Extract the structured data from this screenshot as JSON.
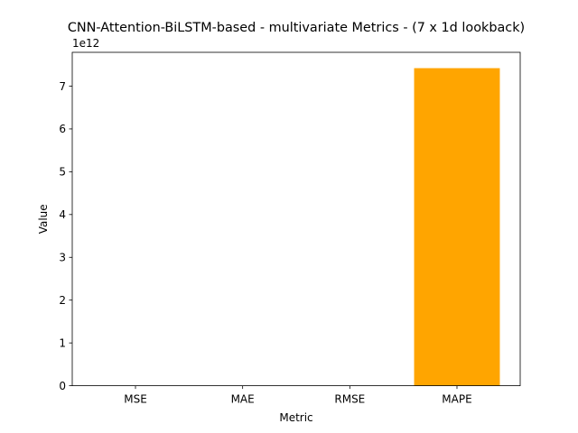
{
  "chart_data": {
    "type": "bar",
    "title": "CNN-Attention-BiLSTM-based - multivariate Metrics - (7 x 1d lookback)",
    "xlabel": "Metric",
    "ylabel": "Value",
    "y_offset_label": "1e12",
    "categories": [
      "MSE",
      "MAE",
      "RMSE",
      "MAPE"
    ],
    "values": [
      0,
      0,
      0,
      7420000000000.0
    ],
    "ylim": [
      0,
      7790000000000.0
    ],
    "yticks": [
      0,
      1000000000000.0,
      2000000000000.0,
      3000000000000.0,
      4000000000000.0,
      5000000000000.0,
      6000000000000.0,
      7000000000000.0
    ],
    "ytick_labels": [
      "0",
      "1",
      "2",
      "3",
      "4",
      "5",
      "6",
      "7"
    ],
    "bar_colors": [
      "#ffa500",
      "#ffa500",
      "#ffa500",
      "#ffa500"
    ],
    "grid": false,
    "legend": false
  }
}
